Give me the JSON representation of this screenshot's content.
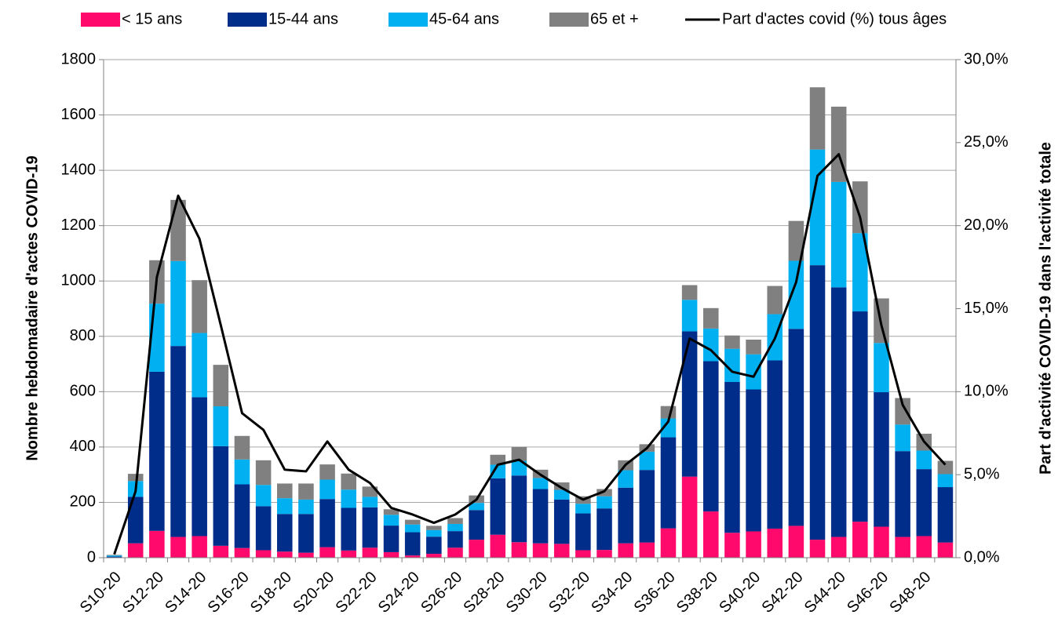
{
  "chart_data": {
    "type": "bar",
    "stacked": true,
    "y_label": "Nombre hebdomadaire d'actes COVID-19",
    "y2_label": "Part d'activité COVID-19 dans l'activité totale",
    "categories": [
      "S10-20",
      null,
      "S12-20",
      null,
      "S14-20",
      null,
      "S16-20",
      null,
      "S18-20",
      null,
      "S20-20",
      null,
      "S22-20",
      null,
      "S24-20",
      null,
      "S26-20",
      null,
      "S28-20",
      null,
      "S30-20",
      null,
      "S32-20",
      null,
      "S34-20",
      null,
      "S36-20",
      null,
      "S38-20",
      null,
      "S40-20",
      null,
      "S42-20",
      null,
      "S44-20",
      null,
      "S46-20",
      null,
      "S48-20",
      null
    ],
    "series": [
      {
        "name": "< 15 ans",
        "color": "#ff0a6c",
        "values": [
          1,
          52,
          97,
          75,
          78,
          43,
          35,
          27,
          22,
          18,
          38,
          26,
          36,
          20,
          8,
          14,
          36,
          65,
          83,
          56,
          52,
          50,
          27,
          28,
          52,
          55,
          106,
          293,
          167,
          90,
          95,
          105,
          115,
          65,
          75,
          130,
          112,
          75,
          78,
          55
        ]
      },
      {
        "name": "15-44 ans",
        "color": "#002d8a",
        "values": [
          3,
          168,
          575,
          690,
          502,
          360,
          230,
          159,
          136,
          140,
          174,
          154,
          146,
          96,
          84,
          62,
          60,
          107,
          204,
          241,
          196,
          160,
          133,
          150,
          201,
          262,
          329,
          525,
          543,
          545,
          513,
          608,
          712,
          992,
          902,
          760,
          486,
          310,
          242,
          200
        ]
      },
      {
        "name": "45-64 ans",
        "color": "#00b0f0",
        "values": [
          4,
          57,
          246,
          307,
          232,
          144,
          90,
          77,
          57,
          52,
          70,
          66,
          38,
          39,
          28,
          24,
          26,
          26,
          49,
          53,
          40,
          35,
          35,
          44,
          63,
          66,
          68,
          114,
          118,
          120,
          127,
          167,
          246,
          418,
          381,
          283,
          178,
          96,
          67,
          47
        ]
      },
      {
        "name": "65 et +",
        "color": "#808080",
        "values": [
          2,
          26,
          157,
          221,
          191,
          150,
          85,
          89,
          53,
          58,
          55,
          58,
          37,
          20,
          17,
          15,
          21,
          27,
          36,
          50,
          30,
          27,
          27,
          26,
          36,
          27,
          45,
          53,
          74,
          48,
          53,
          102,
          144,
          225,
          272,
          187,
          161,
          96,
          61,
          48
        ]
      },
      {
        "name": "Part d'actes covid (%) tous âges",
        "type": "line",
        "axis": "y2",
        "color": "#000000",
        "values": [
          0.2,
          4.0,
          16.9,
          21.8,
          19.2,
          14.0,
          8.7,
          7.7,
          5.3,
          5.2,
          7.0,
          5.3,
          4.5,
          3.0,
          2.6,
          2.1,
          2.6,
          3.5,
          5.6,
          5.9,
          5.0,
          4.2,
          3.5,
          4.0,
          5.6,
          6.6,
          8.2,
          13.2,
          12.5,
          11.2,
          10.9,
          13.2,
          16.6,
          23.0,
          24.3,
          20.5,
          14.0,
          9.2,
          7.0,
          5.6
        ]
      }
    ],
    "ylim": [
      0,
      1800
    ],
    "yticks": [
      0,
      200,
      400,
      600,
      800,
      1000,
      1200,
      1400,
      1600,
      1800
    ],
    "y2lim": [
      0,
      30
    ],
    "y2ticks": [
      {
        "value": 0,
        "label": "0,0%"
      },
      {
        "value": 5,
        "label": "5,0%"
      },
      {
        "value": 10,
        "label": "10,0%"
      },
      {
        "value": 15,
        "label": "15,0%"
      },
      {
        "value": 20,
        "label": "20,0%"
      },
      {
        "value": 25,
        "label": "25,0%"
      },
      {
        "value": 30,
        "label": "30,0%"
      }
    ],
    "grid": true,
    "legend": "top"
  }
}
